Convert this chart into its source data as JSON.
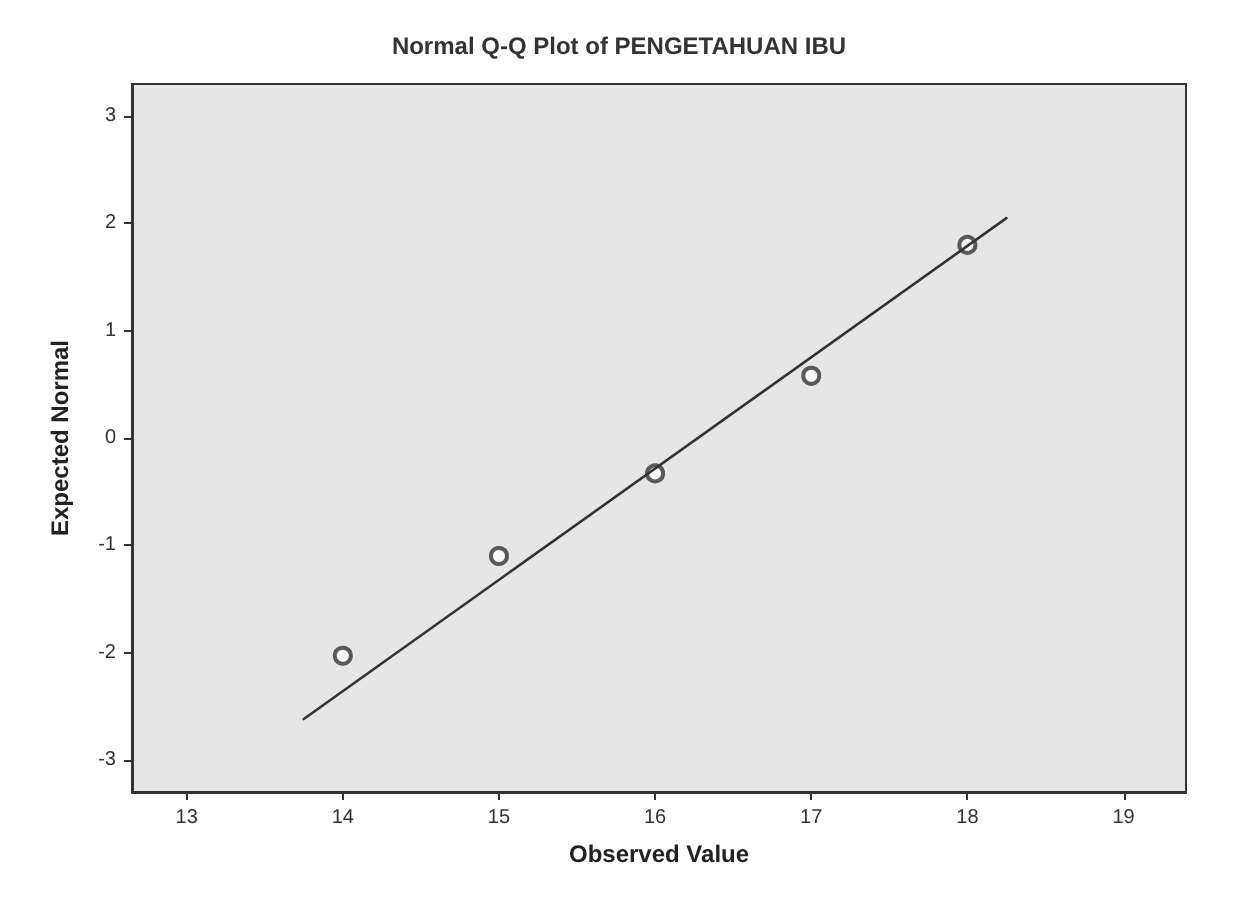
{
  "chart_data": {
    "type": "scatter",
    "title": "Normal Q-Q Plot of PENGETAHUAN IBU",
    "xlabel": "Observed Value",
    "ylabel": "Expected Normal",
    "series": [
      {
        "color": "#333333",
        "x": [
          14,
          15,
          16,
          17,
          18
        ],
        "values": [
          -2.03,
          -1.1,
          -0.33,
          0.58,
          1.8
        ],
        "marker": "circle"
      },
      {
        "type": "line",
        "color": "#333333",
        "x": [
          13.75,
          18.25
        ],
        "values": [
          -2.62,
          2.05
        ],
        "marker": "none",
        "line_style": "solid"
      }
    ],
    "xlim": [
      12.65,
      19.4
    ],
    "xticks": [
      13,
      14,
      15,
      16,
      17,
      18,
      19
    ],
    "ylim": [
      -3.3,
      3.3
    ],
    "yticks": [
      -3,
      -2,
      -1,
      0,
      1,
      2,
      3
    ],
    "grid": false
  }
}
